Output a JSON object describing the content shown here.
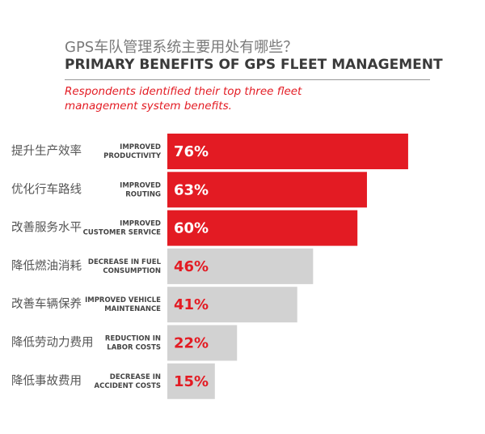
{
  "chart_data": {
    "type": "bar",
    "orientation": "horizontal",
    "title_cn": "GPS车队管理系统主要用处有哪些？",
    "title": "PRIMARY BENEFITS OF GPS FLEET MANAGEMENT",
    "subtitle": "Respondents identified their top three fleet management system benefits.",
    "categories": [
      "提升生产效率",
      "优化行车路线",
      "改善服务水平",
      "降低燃油消耗",
      "改善车辆保养",
      "降低劳动力费用",
      "降低事故费用"
    ],
    "category_labels_en": [
      [
        "IMPROVED",
        "PRODUCTIVITY"
      ],
      [
        "IMPROVED",
        "ROUTING"
      ],
      [
        "IMPROVED",
        "CUSTOMER SERVICE"
      ],
      [
        "DECREASE IN FUEL",
        "CONSUMPTION"
      ],
      [
        "IMPROVED VEHICLE",
        "MAINTENANCE"
      ],
      [
        "REDUCTION IN",
        "LABOR COSTS"
      ],
      [
        "DECREASE IN",
        "ACCIDENT COSTS"
      ]
    ],
    "values": [
      76,
      63,
      60,
      46,
      41,
      22,
      15
    ],
    "value_labels": [
      "76%",
      "63%",
      "60%",
      "46%",
      "41%",
      "22%",
      "15%"
    ],
    "colors": [
      "#e31b23",
      "#e31b23",
      "#e31b23",
      "#d2d2d2",
      "#d2d2d2",
      "#d2d2d2",
      "#d2d2d2"
    ],
    "value_label_colors": [
      "#ffffff",
      "#ffffff",
      "#ffffff",
      "#e31b23",
      "#e31b23",
      "#e31b23",
      "#e31b23"
    ],
    "xlim": [
      0,
      100
    ]
  }
}
